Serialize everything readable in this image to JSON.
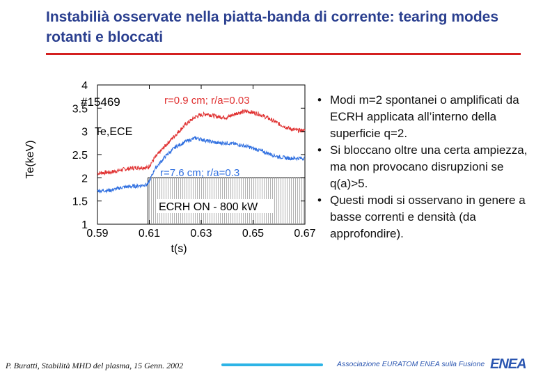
{
  "title": "Instabilià osservate nella piatta-banda di corrente: tearing modes rotanti e bloccati",
  "colors": {
    "title": "#2a3f8f",
    "rule": "#d42020",
    "red_series": "#e03030",
    "blue_series": "#2f6fe0"
  },
  "chart_data": {
    "type": "line",
    "xlabel": "t(s)",
    "ylabel": "Te(keV)",
    "xlim": [
      0.59,
      0.67
    ],
    "ylim": [
      1,
      4
    ],
    "xticks": [
      "0.59",
      "0.61",
      "0.63",
      "0.65",
      "0.67"
    ],
    "yticks": [
      "1",
      "1.5",
      "2",
      "2.5",
      "3",
      "3.5",
      "4"
    ],
    "shot_label": "#15469",
    "te_label": "Te,ECE",
    "series": [
      {
        "name": "r=0.9 cm; r/a=0.03",
        "color": "#e03030",
        "x": [
          0.59,
          0.595,
          0.6,
          0.605,
          0.6095,
          0.612,
          0.616,
          0.62,
          0.624,
          0.628,
          0.632,
          0.636,
          0.64,
          0.644,
          0.648,
          0.652,
          0.656,
          0.66,
          0.664,
          0.667
        ],
        "y": [
          2.1,
          2.12,
          2.18,
          2.22,
          2.22,
          2.42,
          2.68,
          2.92,
          3.15,
          3.32,
          3.38,
          3.32,
          3.3,
          3.4,
          3.43,
          3.38,
          3.28,
          3.16,
          3.06,
          3.02
        ]
      },
      {
        "name": "r=7.6 cm; r/a=0.3",
        "color": "#2f6fe0",
        "x": [
          0.59,
          0.595,
          0.6,
          0.605,
          0.6095,
          0.612,
          0.616,
          0.62,
          0.624,
          0.628,
          0.632,
          0.636,
          0.64,
          0.644,
          0.648,
          0.652,
          0.656,
          0.66,
          0.664,
          0.667
        ],
        "y": [
          1.72,
          1.73,
          1.8,
          1.82,
          1.86,
          2.18,
          2.45,
          2.66,
          2.78,
          2.86,
          2.8,
          2.75,
          2.75,
          2.72,
          2.67,
          2.6,
          2.52,
          2.45,
          2.42,
          2.42
        ]
      }
    ],
    "ecrh": {
      "label": "ECRH ON - 800 kW",
      "start": 0.6095,
      "end": 0.67,
      "level": 2.0
    }
  },
  "bullets": [
    "Modi m=2 spontanei o amplificati da ECRH applicata all’interno della superficie q=2.",
    "Si bloccano oltre una certa ampiezza, ma non provocano disrupzioni se q(a)>5.",
    "Questi modi si osservano in genere a basse correnti e densità (da approfondire)."
  ],
  "bullet_symbol": "•",
  "footer": {
    "citation": "P. Buratti, Stabilità MHD del plasma, 15 Genn. 2002",
    "association": "Associazione EURATOM ENEA sulla Fusione",
    "logo": "ENEA"
  }
}
